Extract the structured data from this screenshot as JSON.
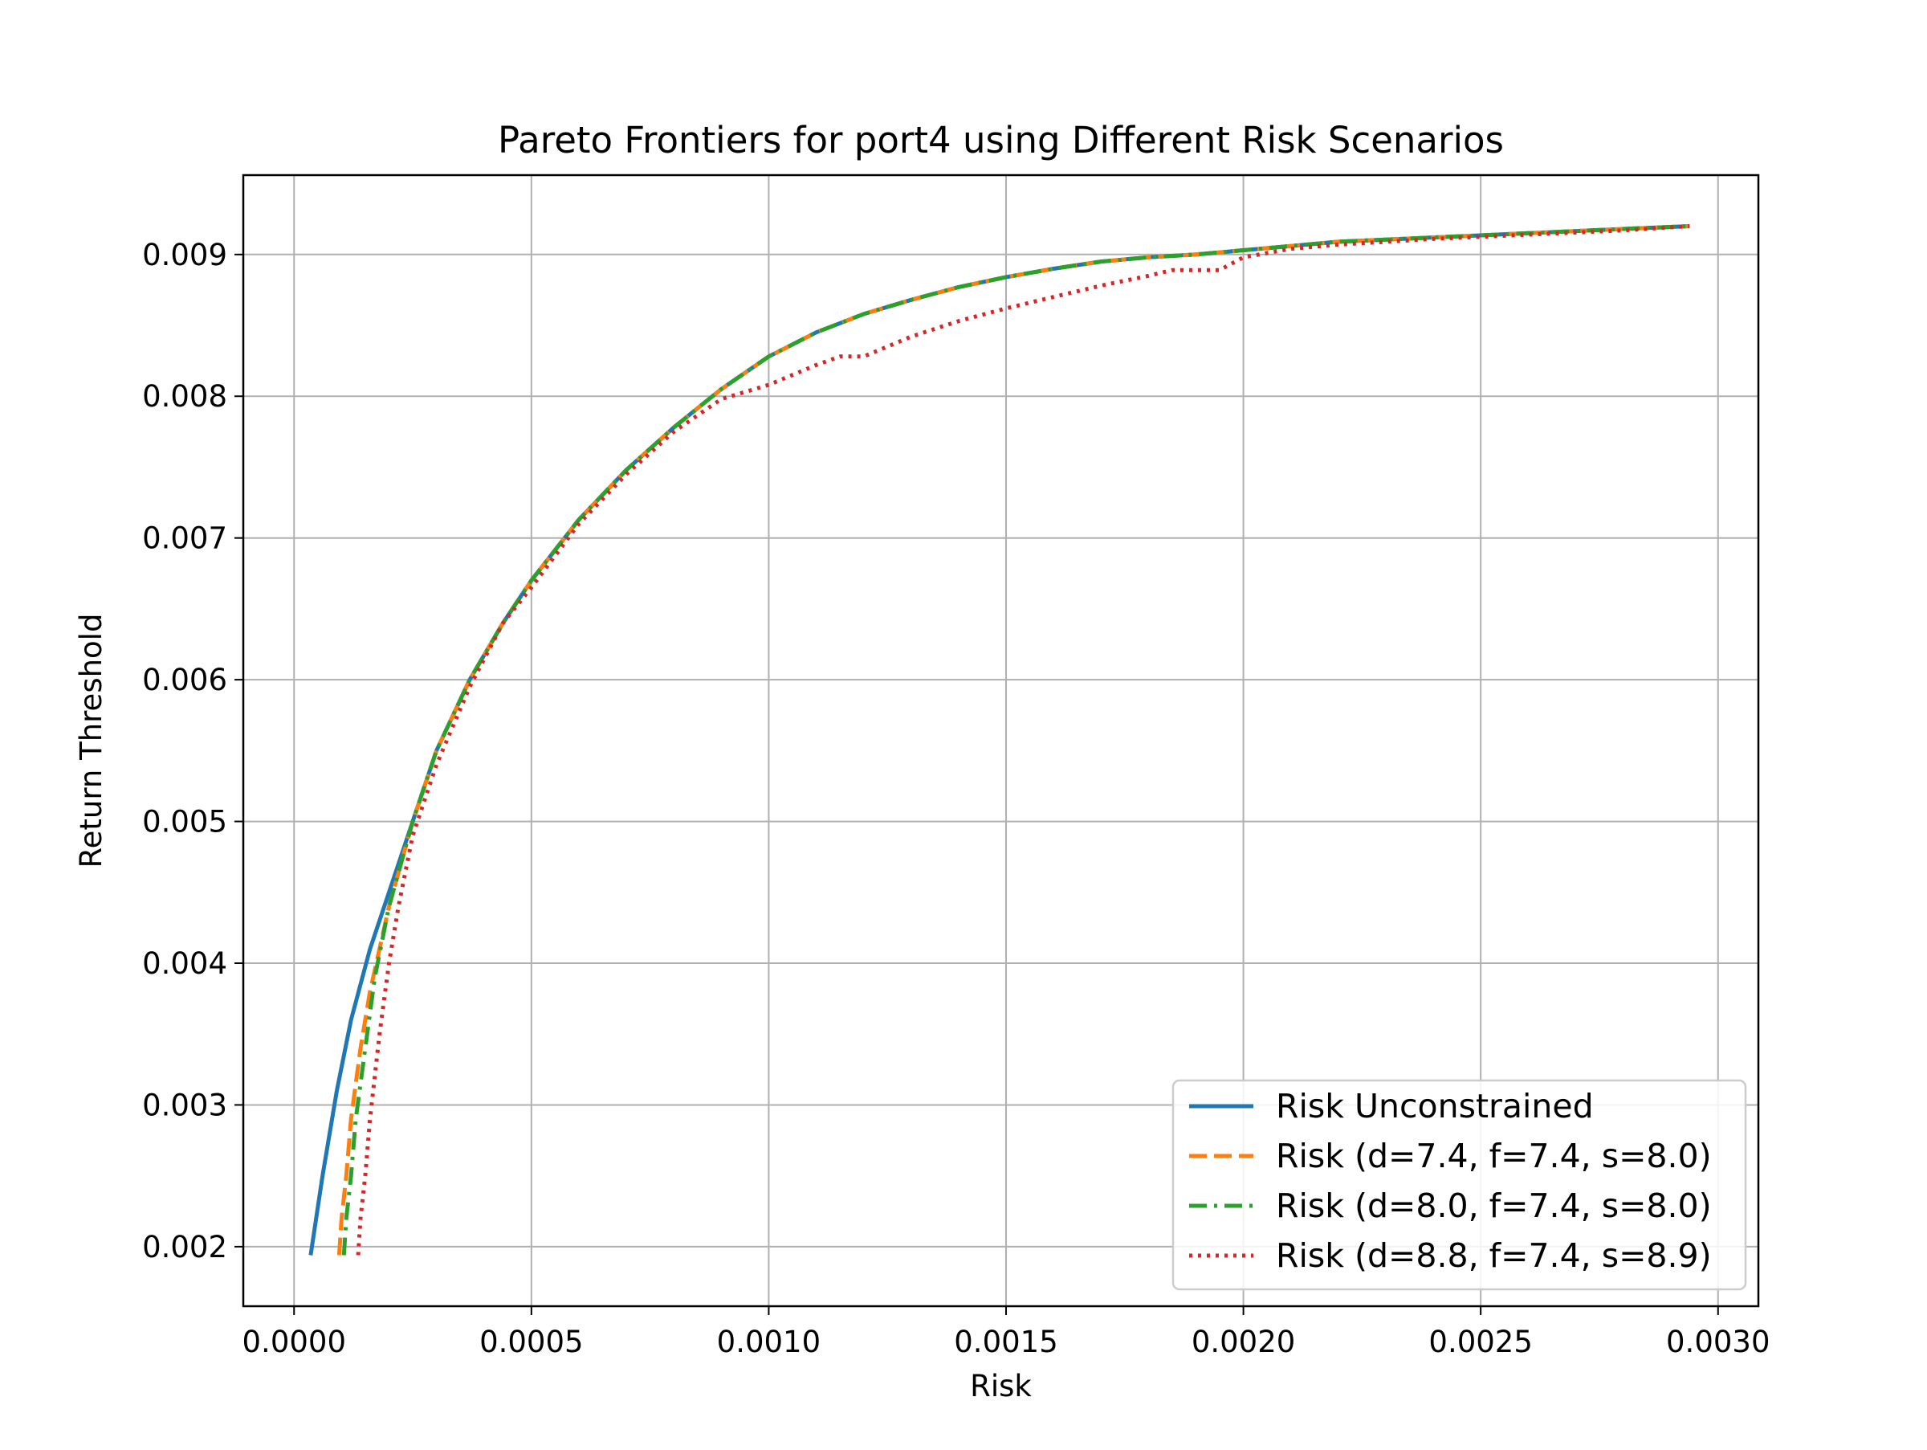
{
  "chart_data": {
    "type": "line",
    "title": "Pareto Frontiers for port4 using Different Risk Scenarios",
    "xlabel": "Risk",
    "ylabel": "Return Threshold",
    "xlim": [
      -0.000107,
      0.003085
    ],
    "ylim": [
      0.00158,
      0.00956
    ],
    "xticks": [
      0.0,
      0.0005,
      0.001,
      0.0015,
      0.002,
      0.0025,
      0.003
    ],
    "xtick_labels": [
      "0.0000",
      "0.0005",
      "0.0010",
      "0.0015",
      "0.0020",
      "0.0025",
      "0.0030"
    ],
    "yticks": [
      0.002,
      0.003,
      0.004,
      0.005,
      0.006,
      0.007,
      0.008,
      0.009
    ],
    "ytick_labels": [
      "0.002",
      "0.003",
      "0.004",
      "0.005",
      "0.006",
      "0.007",
      "0.008",
      "0.009"
    ],
    "grid": true,
    "legend_position": "lower-right",
    "series": [
      {
        "name": "Risk Unconstrained",
        "color": "#1f77b4",
        "style": "solid",
        "x": [
          3.5e-05,
          6e-05,
          9e-05,
          0.00012,
          0.00016,
          0.0002,
          0.00025,
          0.0003,
          0.00037,
          0.00044,
          0.0005,
          0.0006,
          0.0007,
          0.0008,
          0.0009,
          0.001,
          0.0011,
          0.0012,
          0.0013,
          0.0014,
          0.0015,
          0.0016,
          0.0017,
          0.0018,
          0.0019,
          0.002,
          0.0021,
          0.0022,
          0.0024,
          0.0026,
          0.0028,
          0.00294
        ],
        "y": [
          0.00194,
          0.0025,
          0.0031,
          0.0036,
          0.0041,
          0.0045,
          0.005,
          0.0055,
          0.006,
          0.0064,
          0.0067,
          0.00713,
          0.00748,
          0.00778,
          0.00805,
          0.00828,
          0.00845,
          0.00858,
          0.00868,
          0.00877,
          0.00884,
          0.0089,
          0.00895,
          0.00898,
          0.009,
          0.00903,
          0.00906,
          0.00909,
          0.00912,
          0.00915,
          0.00918,
          0.0092
        ]
      },
      {
        "name": "Risk (d=7.4, f=7.4, s=8.0)",
        "color": "#ff7f0e",
        "style": "dashed",
        "x": [
          9.5e-05,
          0.0001,
          0.00011,
          0.00012,
          0.00014,
          0.00016,
          0.0002,
          0.00025,
          0.0003,
          0.00037,
          0.00044,
          0.0005,
          0.0006,
          0.0007,
          0.0008,
          0.0009,
          0.001,
          0.0011,
          0.0012,
          0.0013,
          0.0014,
          0.0015,
          0.0016,
          0.0017,
          0.0018,
          0.0019,
          0.002,
          0.0021,
          0.0022,
          0.0024,
          0.0026,
          0.0028,
          0.00294
        ],
        "y": [
          0.00194,
          0.0022,
          0.0025,
          0.0029,
          0.0034,
          0.0038,
          0.0044,
          0.005,
          0.0055,
          0.006,
          0.0064,
          0.0067,
          0.00713,
          0.00748,
          0.00778,
          0.00805,
          0.00828,
          0.00845,
          0.00858,
          0.00868,
          0.00877,
          0.00884,
          0.0089,
          0.00895,
          0.00898,
          0.009,
          0.00903,
          0.00906,
          0.00909,
          0.00912,
          0.00915,
          0.00918,
          0.0092
        ]
      },
      {
        "name": "Risk (d=8.0, f=7.4, s=8.0)",
        "color": "#2ca02c",
        "style": "dashdot",
        "x": [
          0.000105,
          0.00011,
          0.00012,
          0.00013,
          0.00015,
          0.00017,
          0.0002,
          0.00025,
          0.0003,
          0.00037,
          0.00044,
          0.0005,
          0.0006,
          0.0007,
          0.0008,
          0.0009,
          0.001,
          0.0011,
          0.0012,
          0.0013,
          0.0014,
          0.0015,
          0.0016,
          0.0017,
          0.0018,
          0.0019,
          0.002,
          0.0021,
          0.0022,
          0.0024,
          0.0026,
          0.0028,
          0.00294
        ],
        "y": [
          0.00194,
          0.0022,
          0.0025,
          0.0029,
          0.0034,
          0.0039,
          0.0044,
          0.005,
          0.0055,
          0.006,
          0.0064,
          0.0067,
          0.00713,
          0.00748,
          0.00778,
          0.00805,
          0.00828,
          0.00845,
          0.00858,
          0.00868,
          0.00877,
          0.00884,
          0.0089,
          0.00895,
          0.00898,
          0.009,
          0.00903,
          0.00906,
          0.00909,
          0.00912,
          0.00915,
          0.00918,
          0.0092
        ]
      },
      {
        "name": "Risk (d=8.8, f=7.4, s=8.9)",
        "color": "#d62728",
        "style": "dotted",
        "x": [
          0.000135,
          0.00014,
          0.00015,
          0.00016,
          0.00018,
          0.0002,
          0.00022,
          0.00025,
          0.0003,
          0.00037,
          0.00044,
          0.0005,
          0.0006,
          0.0007,
          0.0008,
          0.0009,
          0.001,
          0.0011,
          0.00115,
          0.0012,
          0.0013,
          0.0014,
          0.0015,
          0.0016,
          0.0017,
          0.0018,
          0.00185,
          0.00195,
          0.002,
          0.0021,
          0.0022,
          0.0024,
          0.0026,
          0.0028,
          0.00294
        ],
        "y": [
          0.00194,
          0.0022,
          0.0025,
          0.0029,
          0.0035,
          0.004,
          0.0044,
          0.0049,
          0.0054,
          0.00595,
          0.0064,
          0.00665,
          0.0071,
          0.00745,
          0.00775,
          0.00798,
          0.00808,
          0.00822,
          0.00828,
          0.00828,
          0.00842,
          0.00853,
          0.00862,
          0.0087,
          0.00878,
          0.00885,
          0.00889,
          0.00889,
          0.00898,
          0.00904,
          0.00907,
          0.00911,
          0.00914,
          0.00917,
          0.0092
        ]
      }
    ]
  }
}
